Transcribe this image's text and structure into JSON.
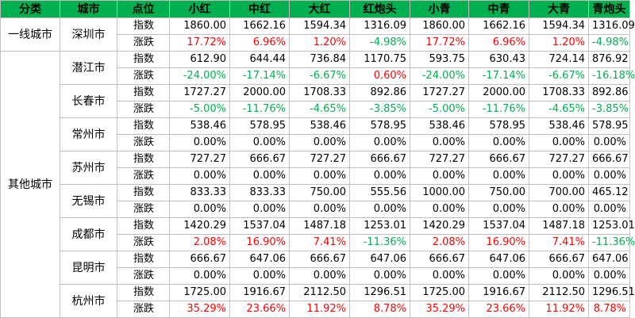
{
  "table": {
    "header": [
      "分类",
      "城市",
      "点位",
      "小红",
      "中红",
      "大红",
      "红炮头",
      "小青",
      "中青",
      "大青",
      "青炮头"
    ],
    "groups": [
      {
        "name": "一线城市",
        "cities": [
          {
            "name": "深圳市",
            "rows": [
              {
                "label": "指数",
                "values": [
                  "1860.00",
                  "1662.16",
                  "1594.34",
                  "1316.09",
                  "1860.00",
                  "1662.16",
                  "1594.34",
                  "1316.09"
                ]
              },
              {
                "label": "涨跌",
                "values": [
                  "17.72%",
                  "6.96%",
                  "1.20%",
                  "-4.98%",
                  "17.72%",
                  "6.96%",
                  "1.20%",
                  "-4.98%"
                ]
              }
            ]
          }
        ]
      },
      {
        "name": "其他城市",
        "cities": [
          {
            "name": "潜江市",
            "rows": [
              {
                "label": "指数",
                "values": [
                  "612.90",
                  "644.44",
                  "736.84",
                  "1170.75",
                  "593.75",
                  "630.43",
                  "724.14",
                  "876.92"
                ]
              },
              {
                "label": "涨跌",
                "values": [
                  "-24.00%",
                  "-17.14%",
                  "-6.67%",
                  "0.60%",
                  "-24.00%",
                  "-17.14%",
                  "-6.67%",
                  "-16.18%"
                ]
              }
            ]
          },
          {
            "name": "长春市",
            "rows": [
              {
                "label": "指数",
                "values": [
                  "1727.27",
                  "2000.00",
                  "1708.33",
                  "892.86",
                  "1727.27",
                  "2000.00",
                  "1708.33",
                  "892.86"
                ]
              },
              {
                "label": "涨跌",
                "values": [
                  "-5.00%",
                  "-11.76%",
                  "-4.65%",
                  "-3.85%",
                  "-5.00%",
                  "-11.76%",
                  "-4.65%",
                  "-3.85%"
                ]
              }
            ]
          },
          {
            "name": "常州市",
            "rows": [
              {
                "label": "指数",
                "values": [
                  "538.46",
                  "578.95",
                  "538.46",
                  "578.95",
                  "538.46",
                  "578.95",
                  "538.46",
                  "578.95"
                ]
              },
              {
                "label": "涨跌",
                "values": [
                  "0.00%",
                  "0.00%",
                  "0.00%",
                  "0.00%",
                  "0.00%",
                  "0.00%",
                  "0.00%",
                  "0.00%"
                ]
              }
            ]
          },
          {
            "name": "苏州市",
            "rows": [
              {
                "label": "指数",
                "values": [
                  "727.27",
                  "666.67",
                  "727.27",
                  "666.67",
                  "727.27",
                  "666.67",
                  "727.27",
                  "666.67"
                ]
              },
              {
                "label": "涨跌",
                "values": [
                  "0.00%",
                  "0.00%",
                  "0.00%",
                  "0.00%",
                  "0.00%",
                  "0.00%",
                  "0.00%",
                  "0.00%"
                ]
              }
            ]
          },
          {
            "name": "无锡市",
            "rows": [
              {
                "label": "指数",
                "values": [
                  "833.33",
                  "833.33",
                  "750.00",
                  "555.56",
                  "1000.00",
                  "750.00",
                  "700.00",
                  "465.12"
                ]
              },
              {
                "label": "涨跌",
                "values": [
                  "0.00%",
                  "0.00%",
                  "0.00%",
                  "0.00%",
                  "0.00%",
                  "0.00%",
                  "0.00%",
                  "0.00%"
                ]
              }
            ]
          },
          {
            "name": "成都市",
            "rows": [
              {
                "label": "指数",
                "values": [
                  "1420.29",
                  "1537.04",
                  "1487.18",
                  "1253.01",
                  "1420.29",
                  "1537.04",
                  "1487.18",
                  "1253.01"
                ]
              },
              {
                "label": "涨跌",
                "values": [
                  "2.08%",
                  "16.90%",
                  "7.41%",
                  "-11.36%",
                  "2.08%",
                  "16.90%",
                  "7.41%",
                  "-11.36%"
                ]
              }
            ]
          },
          {
            "name": "昆明市",
            "rows": [
              {
                "label": "指数",
                "values": [
                  "666.67",
                  "647.06",
                  "666.67",
                  "647.06",
                  "666.67",
                  "647.06",
                  "666.67",
                  "647.06"
                ]
              },
              {
                "label": "涨跌",
                "values": [
                  "0.00%",
                  "0.00%",
                  "0.00%",
                  "0.00%",
                  "0.00%",
                  "0.00%",
                  "0.00%",
                  "0.00%"
                ]
              }
            ]
          },
          {
            "name": "杭州市",
            "rows": [
              {
                "label": "指数",
                "values": [
                  "1725.00",
                  "1916.67",
                  "2112.50",
                  "1296.51",
                  "1725.00",
                  "1916.67",
                  "2112.50",
                  "1296.51"
                ]
              },
              {
                "label": "涨跌",
                "values": [
                  "35.29%",
                  "23.66%",
                  "11.92%",
                  "8.78%",
                  "35.29%",
                  "23.66%",
                  "11.92%",
                  "8.78%"
                ]
              }
            ]
          }
        ]
      }
    ]
  }
}
